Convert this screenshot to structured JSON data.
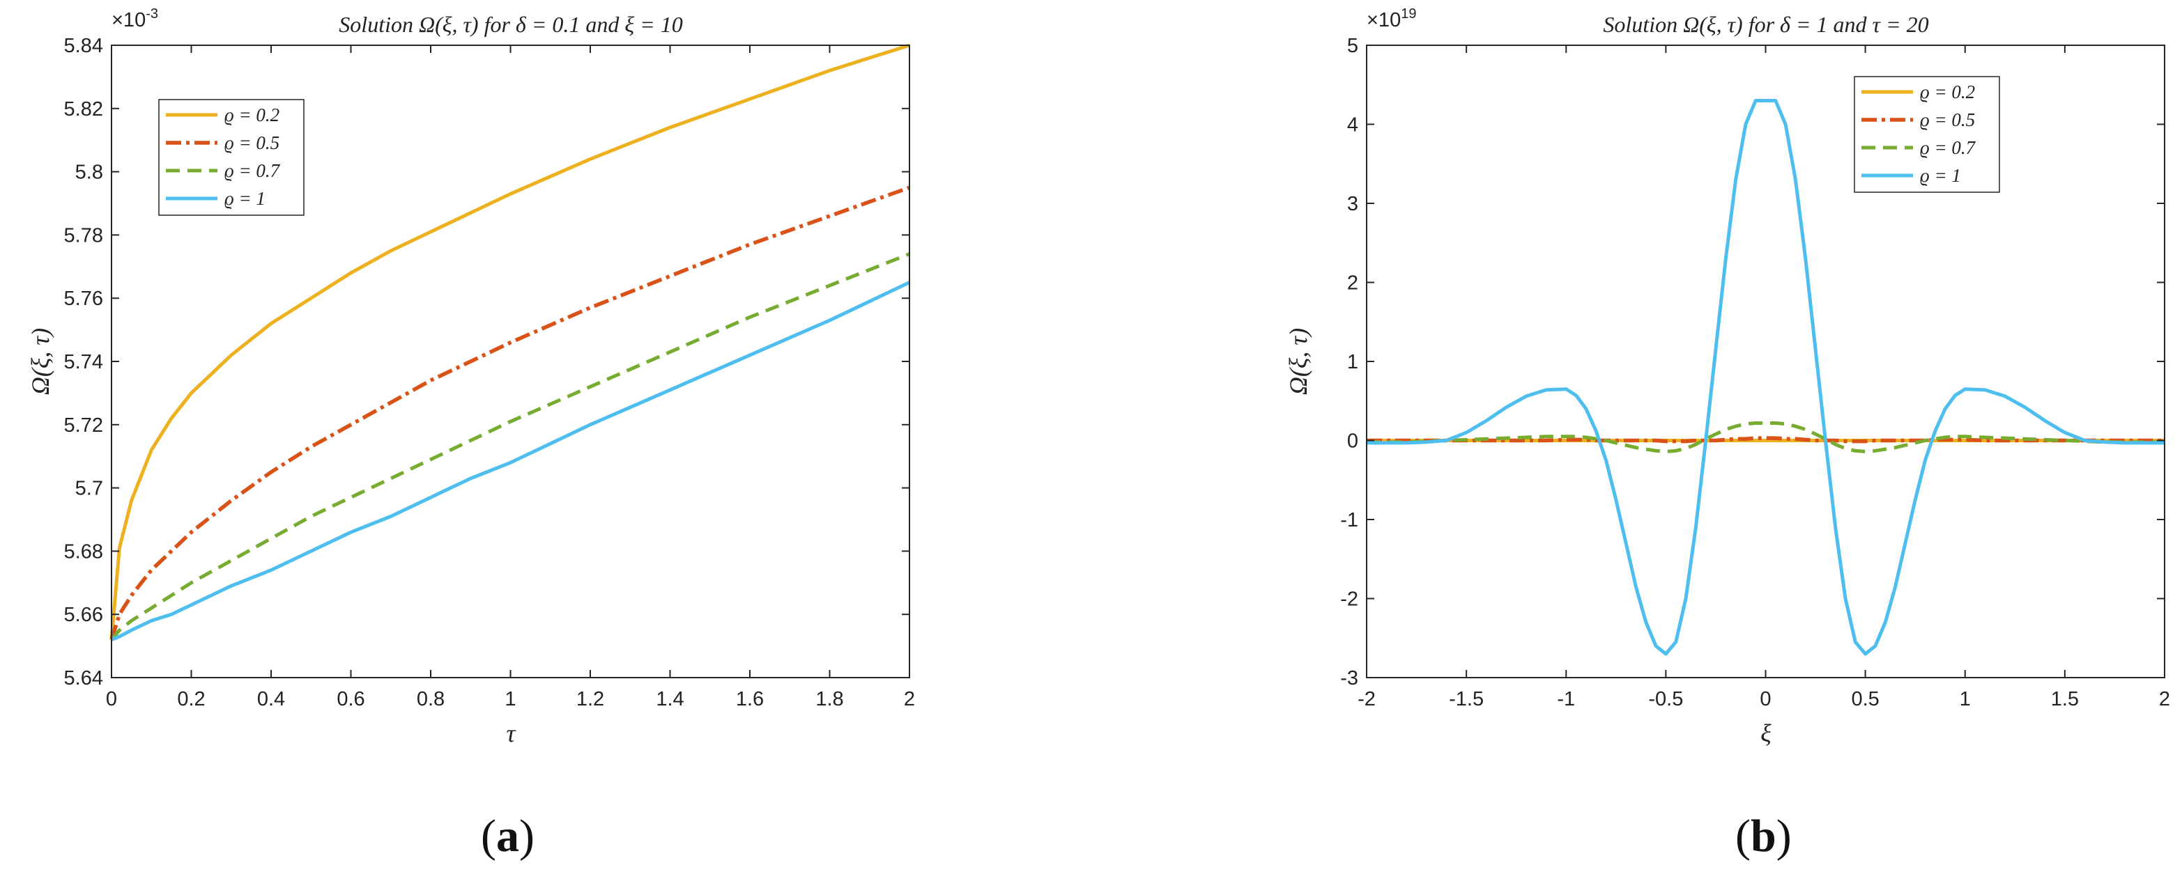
{
  "chart_data": [
    {
      "type": "line",
      "title": "Solution Ω(ξ, τ) for δ = 0.1 and ξ = 10",
      "xlabel": "τ",
      "ylabel": "Ω(ξ, τ)",
      "exponent": "×10-3",
      "exponent_base": "×10",
      "exponent_power": "-3",
      "xlim": [
        0,
        2
      ],
      "ylim": [
        5.64,
        5.84
      ],
      "xticks": [
        "0",
        "0.2",
        "0.4",
        "0.6",
        "0.8",
        "1",
        "1.2",
        "1.4",
        "1.6",
        "1.8",
        "2"
      ],
      "yticks": [
        "5.64",
        "5.66",
        "5.68",
        "5.7",
        "5.72",
        "5.74",
        "5.76",
        "5.78",
        "5.8",
        "5.82",
        "5.84"
      ],
      "grid": false,
      "legend_position": "top-left",
      "panel_label": "(a)",
      "x": [
        0,
        0.02,
        0.05,
        0.1,
        0.15,
        0.2,
        0.3,
        0.4,
        0.5,
        0.6,
        0.7,
        0.8,
        0.9,
        1.0,
        1.2,
        1.4,
        1.6,
        1.8,
        2.0
      ],
      "series": [
        {
          "name": "ϱ = 0.2",
          "color": "#EDB120",
          "dash": "solid",
          "values": [
            5.652,
            5.681,
            5.696,
            5.712,
            5.722,
            5.73,
            5.742,
            5.752,
            5.76,
            5.768,
            5.775,
            5.781,
            5.787,
            5.793,
            5.804,
            5.814,
            5.823,
            5.832,
            5.84
          ]
        },
        {
          "name": "ϱ = 0.5",
          "color": "#D95319",
          "dash": "dashdot",
          "values": [
            5.652,
            5.66,
            5.666,
            5.674,
            5.68,
            5.686,
            5.696,
            5.705,
            5.713,
            5.72,
            5.727,
            5.734,
            5.74,
            5.746,
            5.757,
            5.767,
            5.777,
            5.786,
            5.795
          ]
        },
        {
          "name": "ϱ = 0.7",
          "color": "#77AC30",
          "dash": "dash",
          "values": [
            5.652,
            5.655,
            5.658,
            5.662,
            5.666,
            5.67,
            5.677,
            5.684,
            5.691,
            5.697,
            5.703,
            5.709,
            5.715,
            5.721,
            5.732,
            5.743,
            5.754,
            5.764,
            5.774
          ]
        },
        {
          "name": "ϱ = 1",
          "color": "#4DBEEE",
          "dash": "solid",
          "values": [
            5.652,
            5.653,
            5.655,
            5.658,
            5.66,
            5.663,
            5.669,
            5.674,
            5.68,
            5.686,
            5.691,
            5.697,
            5.703,
            5.708,
            5.72,
            5.731,
            5.742,
            5.753,
            5.765
          ]
        }
      ]
    },
    {
      "type": "line",
      "title": "Solution Ω(ξ, τ) for δ = 1 and τ = 20",
      "xlabel": "ξ",
      "ylabel": "Ω(ξ, τ)",
      "exponent": "×1019",
      "exponent_base": "×10",
      "exponent_power": "19",
      "xlim": [
        -2,
        2
      ],
      "ylim": [
        -3,
        5
      ],
      "xticks": [
        "-2",
        "-1.5",
        "-1",
        "-0.5",
        "0",
        "0.5",
        "1",
        "1.5",
        "2"
      ],
      "yticks": [
        "-3",
        "-2",
        "-1",
        "0",
        "1",
        "2",
        "3",
        "4",
        "5"
      ],
      "grid": false,
      "legend_position": "top-right",
      "panel_label": "(b)",
      "x": [
        -2.0,
        -1.8,
        -1.7,
        -1.6,
        -1.5,
        -1.4,
        -1.3,
        -1.2,
        -1.1,
        -1.0,
        -0.95,
        -0.9,
        -0.85,
        -0.8,
        -0.75,
        -0.7,
        -0.65,
        -0.6,
        -0.55,
        -0.5,
        -0.45,
        -0.4,
        -0.35,
        -0.3,
        -0.25,
        -0.2,
        -0.15,
        -0.1,
        -0.05,
        0.0,
        0.05,
        0.1,
        0.15,
        0.2,
        0.25,
        0.3,
        0.35,
        0.4,
        0.45,
        0.5,
        0.55,
        0.6,
        0.65,
        0.7,
        0.75,
        0.8,
        0.85,
        0.9,
        0.95,
        1.0,
        1.1,
        1.2,
        1.3,
        1.4,
        1.5,
        1.6,
        1.7,
        1.8,
        2.0
      ],
      "series": [
        {
          "name": "ϱ = 0.2",
          "color": "#EDB120",
          "dash": "solid",
          "values": [
            0,
            0,
            0,
            0,
            0,
            0,
            0,
            0,
            0,
            0,
            0,
            0,
            0,
            0,
            0,
            0,
            0,
            0,
            0,
            0,
            0,
            0,
            0,
            0,
            0,
            0,
            0,
            0,
            0,
            0,
            0,
            0,
            0,
            0,
            0,
            0,
            0,
            0,
            0,
            0,
            0,
            0,
            0,
            0,
            0,
            0,
            0,
            0,
            0,
            0,
            0,
            0,
            0,
            0,
            0,
            0,
            0,
            0,
            0
          ]
        },
        {
          "name": "ϱ = 0.5",
          "color": "#D95319",
          "dash": "dashdot",
          "values": [
            0,
            0,
            0,
            0,
            0,
            0,
            0,
            0,
            0,
            0.01,
            0.01,
            0.01,
            0,
            0,
            0,
            0,
            0,
            0,
            0,
            -0.01,
            -0.01,
            -0.01,
            0,
            0,
            0,
            0.01,
            0.02,
            0.02,
            0.03,
            0.03,
            0.03,
            0.02,
            0.02,
            0.01,
            0,
            0,
            0,
            -0.01,
            -0.01,
            -0.01,
            0,
            0,
            0,
            0,
            0,
            0,
            0.01,
            0.01,
            0.01,
            0.01,
            0,
            0,
            0,
            0,
            0,
            0,
            0,
            0,
            0
          ]
        },
        {
          "name": "ϱ = 0.7",
          "color": "#77AC30",
          "dash": "dash",
          "values": [
            -0.02,
            -0.02,
            -0.01,
            0,
            0.01,
            0.02,
            0.03,
            0.04,
            0.05,
            0.05,
            0.05,
            0.04,
            0.02,
            0,
            -0.03,
            -0.06,
            -0.09,
            -0.11,
            -0.13,
            -0.14,
            -0.13,
            -0.1,
            -0.05,
            0.02,
            0.08,
            0.14,
            0.18,
            0.21,
            0.22,
            0.22,
            0.22,
            0.21,
            0.18,
            0.14,
            0.08,
            0.02,
            -0.05,
            -0.1,
            -0.13,
            -0.14,
            -0.13,
            -0.11,
            -0.09,
            -0.06,
            -0.03,
            0,
            0.02,
            0.04,
            0.05,
            0.05,
            0.04,
            0.03,
            0.02,
            0.01,
            0,
            -0.01,
            -0.02,
            -0.02,
            -0.02
          ]
        },
        {
          "name": "ϱ = 1",
          "color": "#4DBEEE",
          "dash": "solid",
          "values": [
            -0.03,
            -0.03,
            -0.02,
            0.0,
            0.1,
            0.25,
            0.42,
            0.56,
            0.64,
            0.65,
            0.57,
            0.4,
            0.12,
            -0.25,
            -0.75,
            -1.3,
            -1.85,
            -2.3,
            -2.6,
            -2.7,
            -2.55,
            -2.0,
            -1.1,
            0.0,
            1.15,
            2.3,
            3.3,
            4.0,
            4.3,
            4.3,
            4.3,
            4.0,
            3.3,
            2.3,
            1.15,
            0.0,
            -1.1,
            -2.0,
            -2.55,
            -2.7,
            -2.6,
            -2.3,
            -1.85,
            -1.3,
            -0.75,
            -0.25,
            0.12,
            0.4,
            0.57,
            0.65,
            0.64,
            0.56,
            0.42,
            0.25,
            0.1,
            0.0,
            -0.02,
            -0.03,
            -0.03
          ]
        }
      ]
    }
  ]
}
